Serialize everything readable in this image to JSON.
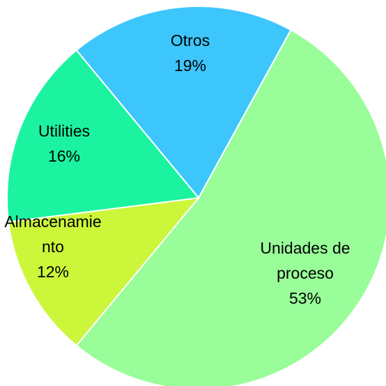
{
  "chart_data": {
    "type": "pie",
    "categories": [
      "Otros",
      "Unidades de proceso",
      "Almacenamiento",
      "Utilities"
    ],
    "values": [
      19,
      53,
      12,
      16
    ],
    "value_labels": [
      "19%",
      "53%",
      "12%",
      "16%"
    ],
    "colors": [
      "#3cc6fc",
      "#99fd99",
      "#ccf63a",
      "#1cf3a0"
    ]
  }
}
